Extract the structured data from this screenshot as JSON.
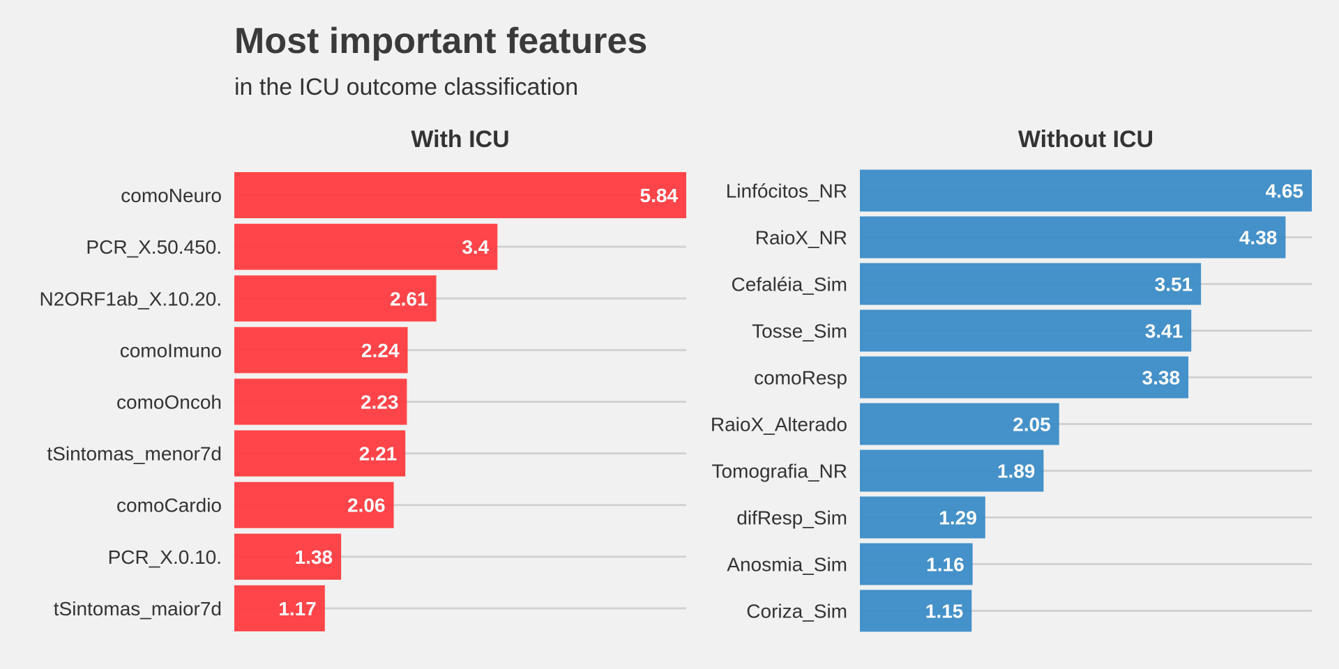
{
  "chart_data": {
    "title": "Most important features",
    "subtitle": "in the ICU outcome classification",
    "panels": [
      {
        "type": "bar",
        "orientation": "horizontal",
        "facet_title": "With ICU",
        "color": "#ff3b3f",
        "xlim": [
          0,
          5.84
        ],
        "categories": [
          "comoNeuro",
          "PCR_X.50.450.",
          "N2ORF1ab_X.10.20.",
          "comoImuno",
          "comoOncoh",
          "tSintomas_menor7d",
          "comoCardio",
          "PCR_X.0.10.",
          "tSintomas_maior7d"
        ],
        "values": [
          5.84,
          3.4,
          2.61,
          2.24,
          2.23,
          2.21,
          2.06,
          1.38,
          1.17
        ],
        "value_labels": [
          "5.84",
          "3.4",
          "2.61",
          "2.24",
          "2.23",
          "2.21",
          "2.06",
          "1.38",
          "1.17"
        ]
      },
      {
        "type": "bar",
        "orientation": "horizontal",
        "facet_title": "Without ICU",
        "color": "#3b8bc6",
        "xlim": [
          0,
          4.65
        ],
        "categories": [
          "Linfócitos_NR",
          "RaioX_NR",
          "Cefaléia_Sim",
          "Tosse_Sim",
          "comoResp",
          "RaioX_Alterado",
          "Tomografia_NR",
          "difResp_Sim",
          "Anosmia_Sim",
          "Coriza_Sim"
        ],
        "values": [
          4.65,
          4.38,
          3.51,
          3.41,
          3.38,
          2.05,
          1.89,
          1.29,
          1.16,
          1.15
        ],
        "value_labels": [
          "4.65",
          "4.38",
          "3.51",
          "3.41",
          "3.38",
          "2.05",
          "1.89",
          "1.29",
          "1.16",
          "1.15"
        ]
      }
    ],
    "grid": "horizontal-major-only",
    "legend": "none"
  }
}
